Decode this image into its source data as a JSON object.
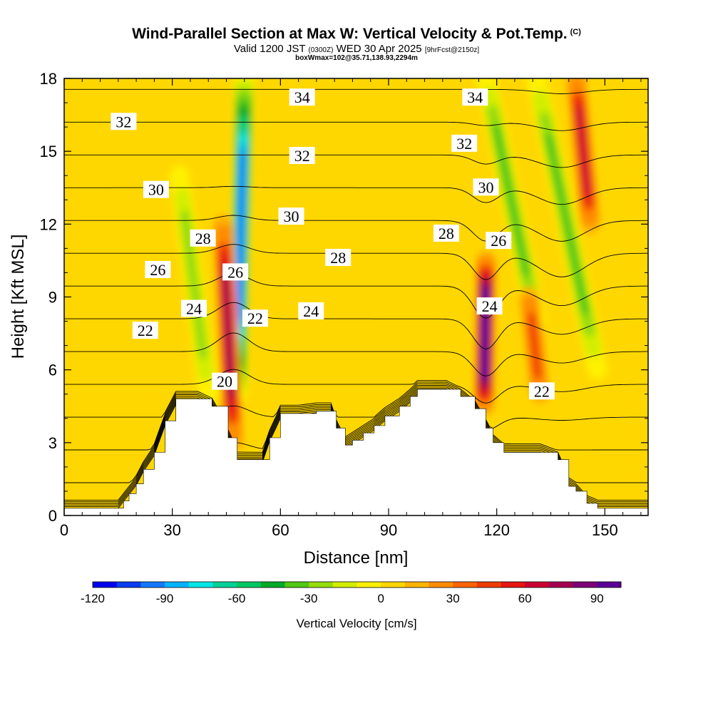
{
  "header": {
    "title": "Wind-Parallel Section at Max W: Vertical Velocity & Pot.Temp.",
    "copyright": "(C)",
    "valid_prefix": "Valid 1200 JST",
    "valid_utc": "(0300Z)",
    "valid_date": "WED 30 Apr 2025",
    "forecast": "[9hrFcst@2150z]",
    "box_info": "boxWmax=102@35.71,138.93,2294m"
  },
  "chart_data": {
    "type": "heatmap",
    "xlabel": "Distance [nm]",
    "ylabel": "Height [Kft MSL]",
    "xlim": [
      0,
      162
    ],
    "ylim": [
      0,
      18
    ],
    "x_ticks": [
      0,
      30,
      60,
      90,
      120,
      150
    ],
    "y_ticks": [
      0,
      3,
      6,
      9,
      12,
      15,
      18
    ],
    "colorbar": {
      "title": "Vertical Velocity [cm/s]",
      "range": [
        -120,
        100
      ],
      "ticks": [
        -120,
        -90,
        -60,
        -30,
        0,
        30,
        60,
        90
      ],
      "colors": [
        "#0000ee",
        "#0a3cf0",
        "#1478ff",
        "#00b4ff",
        "#00e6e6",
        "#00d296",
        "#00c864",
        "#00aa28",
        "#50c814",
        "#96dc0a",
        "#d2ee00",
        "#fff000",
        "#ffd700",
        "#ffb400",
        "#ff8c00",
        "#ff6400",
        "#f03c00",
        "#e61414",
        "#cd0032",
        "#a50050",
        "#7d0078",
        "#5a0096"
      ]
    },
    "contours": {
      "field": "potential temperature",
      "labels": [
        {
          "text": "32",
          "x": 16.5,
          "y": 16.2
        },
        {
          "text": "34",
          "x": 66,
          "y": 17.2
        },
        {
          "text": "34",
          "x": 114,
          "y": 17.2
        },
        {
          "text": "32",
          "x": 66,
          "y": 14.8
        },
        {
          "text": "32",
          "x": 111,
          "y": 15.3
        },
        {
          "text": "30",
          "x": 25.5,
          "y": 13.4
        },
        {
          "text": "30",
          "x": 63,
          "y": 12.3
        },
        {
          "text": "30",
          "x": 117,
          "y": 13.5
        },
        {
          "text": "28",
          "x": 38.5,
          "y": 11.4
        },
        {
          "text": "28",
          "x": 76,
          "y": 10.6
        },
        {
          "text": "28",
          "x": 106,
          "y": 11.6
        },
        {
          "text": "26",
          "x": 26,
          "y": 10.1
        },
        {
          "text": "26",
          "x": 47.5,
          "y": 10.0
        },
        {
          "text": "26",
          "x": 120.5,
          "y": 11.3
        },
        {
          "text": "24",
          "x": 36,
          "y": 8.5
        },
        {
          "text": "24",
          "x": 68.5,
          "y": 8.4
        },
        {
          "text": "24",
          "x": 118,
          "y": 8.6
        },
        {
          "text": "22",
          "x": 22.5,
          "y": 7.6
        },
        {
          "text": "22",
          "x": 53,
          "y": 8.1
        },
        {
          "text": "22",
          "x": 132.5,
          "y": 5.1
        },
        {
          "text": "20",
          "x": 44.5,
          "y": 5.5
        }
      ]
    },
    "w_features": [
      {
        "sign": "down",
        "x_bottom": 48,
        "y_bottom": 5,
        "x_top": 50,
        "y_top": 18,
        "w_peak": -100
      },
      {
        "sign": "up",
        "x_bottom": 47,
        "y_bottom": 3,
        "x_top": 44,
        "y_top": 12,
        "w_peak": 70
      },
      {
        "sign": "up",
        "x_bottom": 116.5,
        "y_bottom": 4.5,
        "x_top": 117,
        "y_top": 10.5,
        "w_peak": 100
      },
      {
        "sign": "down",
        "x_bottom": 131,
        "y_bottom": 8,
        "x_top": 117,
        "y_top": 18,
        "w_peak": -40
      },
      {
        "sign": "down",
        "x_bottom": 148,
        "y_bottom": 6,
        "x_top": 131,
        "y_top": 18,
        "w_peak": -45
      },
      {
        "sign": "up",
        "x_bottom": 146,
        "y_bottom": 12,
        "x_top": 142,
        "y_top": 18,
        "w_peak": 60
      },
      {
        "sign": "up",
        "x_bottom": 132,
        "y_bottom": 5,
        "x_top": 129,
        "y_top": 9,
        "w_peak": 40
      },
      {
        "sign": "down",
        "x_bottom": 40,
        "y_bottom": 5,
        "x_top": 32,
        "y_top": 14,
        "w_peak": -30
      }
    ],
    "terrain": [
      [
        0,
        0.3
      ],
      [
        8,
        0.3
      ],
      [
        15,
        0.3
      ],
      [
        16.5,
        0.6
      ],
      [
        18,
        0.9
      ],
      [
        20,
        1.3
      ],
      [
        22,
        1.9
      ],
      [
        25,
        2.6
      ],
      [
        28,
        3.9
      ],
      [
        31,
        4.8
      ],
      [
        37,
        4.8
      ],
      [
        41,
        4.5
      ],
      [
        45.5,
        3.2
      ],
      [
        48,
        2.3
      ],
      [
        55,
        2.3
      ],
      [
        57,
        3.2
      ],
      [
        60,
        4.2
      ],
      [
        65,
        4.2
      ],
      [
        70,
        4.3
      ],
      [
        74,
        4.3
      ],
      [
        75.5,
        3.6
      ],
      [
        78,
        2.9
      ],
      [
        80,
        3.1
      ],
      [
        83,
        3.4
      ],
      [
        86,
        3.7
      ],
      [
        89,
        4.1
      ],
      [
        93,
        4.5
      ],
      [
        96,
        4.9
      ],
      [
        98,
        5.2
      ],
      [
        106,
        5.2
      ],
      [
        110,
        4.9
      ],
      [
        114,
        4.4
      ],
      [
        117,
        3.6
      ],
      [
        119,
        3.0
      ],
      [
        122,
        2.6
      ],
      [
        127,
        2.6
      ],
      [
        132,
        2.6
      ],
      [
        137,
        2.3
      ],
      [
        140,
        1.2
      ],
      [
        142,
        1.0
      ],
      [
        145,
        0.5
      ],
      [
        148,
        0.3
      ],
      [
        151,
        0.3
      ],
      [
        162,
        0.3
      ]
    ]
  }
}
